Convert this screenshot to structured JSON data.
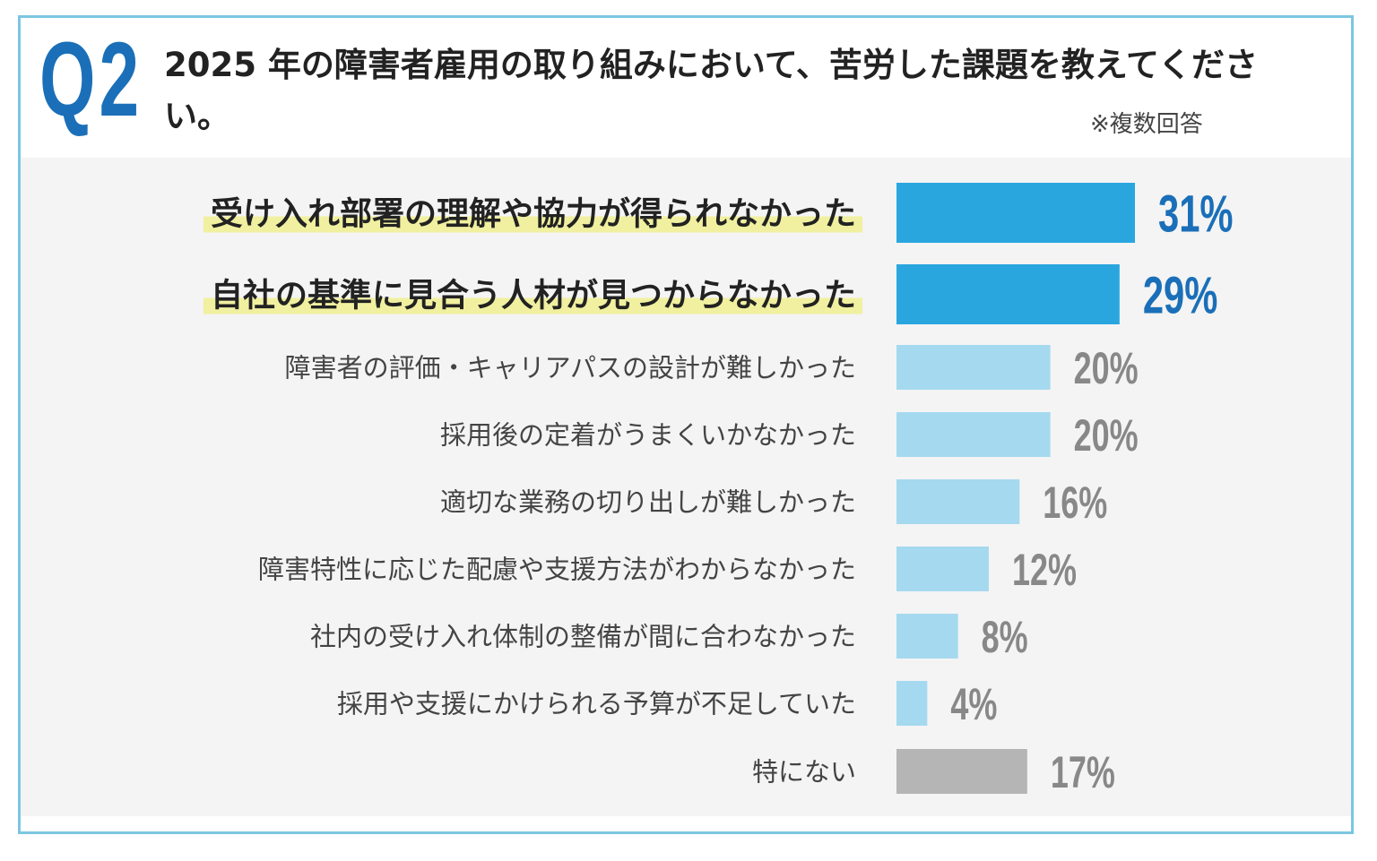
{
  "header": {
    "badge": "Q2",
    "title": "2025 年の障害者雇用の取り組みにおいて、苦労した課題を教えてください。",
    "note": "※複数回答"
  },
  "colors": {
    "frame": "#7cc6e2",
    "badge": "#1a6fb8",
    "highlight_bar": "#2aa6df",
    "highlight_value": "#1a6fb8",
    "normal_bar": "#a5d9ef",
    "normal_value": "#888888",
    "none_bar": "#b5b5b5",
    "marker": "#f0f0a0",
    "panel": "#f4f4f4"
  },
  "chart_data": {
    "type": "bar",
    "orientation": "horizontal",
    "unit": "%",
    "categories": [
      "受け入れ部署の理解や協力が得られなかった",
      "自社の基準に見合う人材が見つからなかった",
      "障害者の評価・キャリアパスの設計が難しかった",
      "採用後の定着がうまくいかなかった",
      "適切な業務の切り出しが難しかった",
      "障害特性に応じた配慮や支援方法がわからなかった",
      "社内の受け入れ体制の整備が間に合わなかった",
      "採用や支援にかけられる予算が不足していた",
      "特にない"
    ],
    "values": [
      31,
      29,
      20,
      20,
      16,
      12,
      8,
      4,
      17
    ],
    "labels": [
      "31%",
      "29%",
      "20%",
      "20%",
      "16%",
      "12%",
      "8%",
      "4%",
      "17%"
    ],
    "highlighted": [
      true,
      true,
      false,
      false,
      false,
      false,
      false,
      false,
      false
    ],
    "xlim": [
      0,
      31
    ],
    "grid": false,
    "legend": "none"
  }
}
